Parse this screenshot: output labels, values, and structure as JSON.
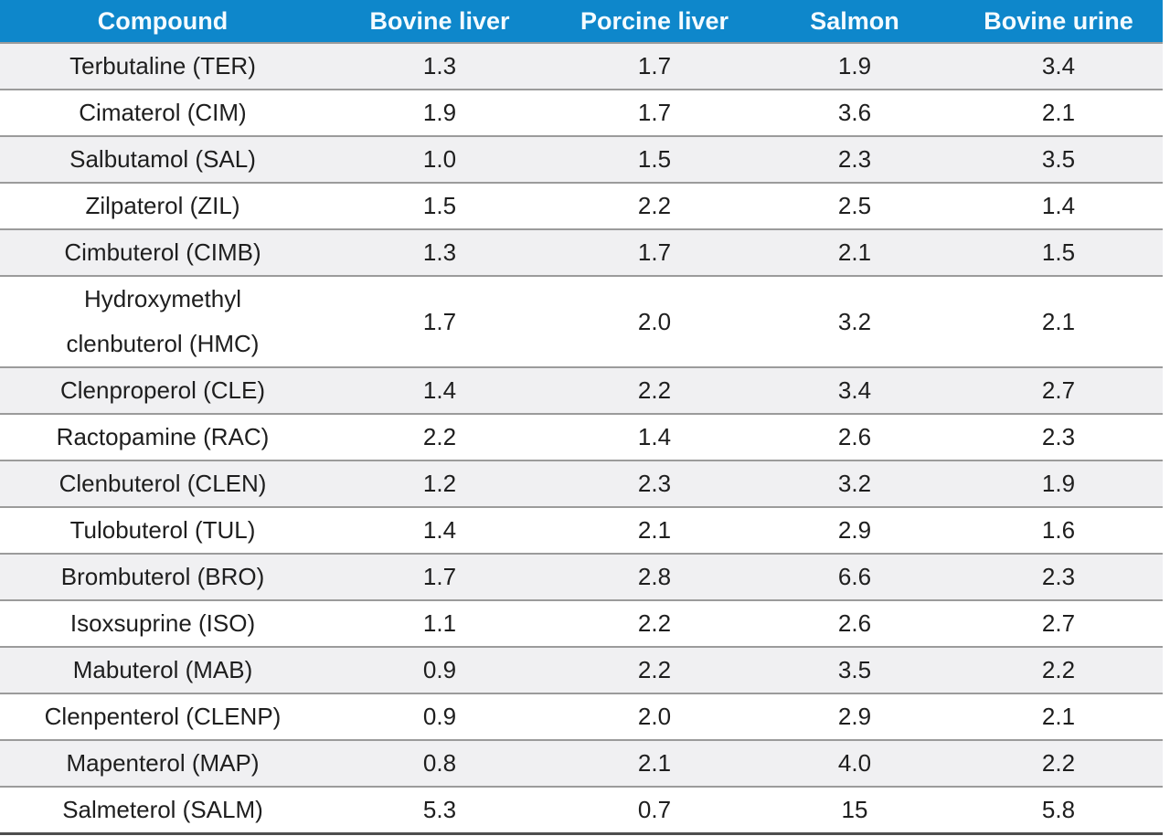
{
  "colors": {
    "header_bg": "#0E87CB",
    "header_text": "#F4FBFF",
    "body_text": "#1E1E1E",
    "stripe_bg": "#F0F0F2",
    "row_border": "#9B9B9B",
    "bottom_border": "#4D4D4D"
  },
  "table": {
    "columns": [
      "Compound",
      "Bovine liver",
      "Porcine liver",
      "Salmon",
      "Bovine urine"
    ],
    "rows": [
      {
        "compound": "Terbutaline (TER)",
        "values": [
          "1.3",
          "1.7",
          "1.9",
          "3.4"
        ]
      },
      {
        "compound": "Cimaterol (CIM)",
        "values": [
          "1.9",
          "1.7",
          "3.6",
          "2.1"
        ]
      },
      {
        "compound": "Salbutamol (SAL)",
        "values": [
          "1.0",
          "1.5",
          "2.3",
          "3.5"
        ]
      },
      {
        "compound": "Zilpaterol (ZIL)",
        "values": [
          "1.5",
          "2.2",
          "2.5",
          "1.4"
        ]
      },
      {
        "compound": "Cimbuterol (CIMB)",
        "values": [
          "1.3",
          "1.7",
          "2.1",
          "1.5"
        ]
      },
      {
        "compound": "Hydroxymethyl clenbuterol (HMC)",
        "values": [
          "1.7",
          "2.0",
          "3.2",
          "2.1"
        ]
      },
      {
        "compound": "Clenproperol (CLE)",
        "values": [
          "1.4",
          "2.2",
          "3.4",
          "2.7"
        ]
      },
      {
        "compound": "Ractopamine (RAC)",
        "values": [
          "2.2",
          "1.4",
          "2.6",
          "2.3"
        ]
      },
      {
        "compound": "Clenbuterol (CLEN)",
        "values": [
          "1.2",
          "2.3",
          "3.2",
          "1.9"
        ]
      },
      {
        "compound": "Tulobuterol (TUL)",
        "values": [
          "1.4",
          "2.1",
          "2.9",
          "1.6"
        ]
      },
      {
        "compound": "Brombuterol (BRO)",
        "values": [
          "1.7",
          "2.8",
          "6.6",
          "2.3"
        ]
      },
      {
        "compound": "Isoxsuprine (ISO)",
        "values": [
          "1.1",
          "2.2",
          "2.6",
          "2.7"
        ]
      },
      {
        "compound": "Mabuterol (MAB)",
        "values": [
          "0.9",
          "2.2",
          "3.5",
          "2.2"
        ]
      },
      {
        "compound": "Clenpenterol (CLENP)",
        "values": [
          "0.9",
          "2.0",
          "2.9",
          "2.1"
        ]
      },
      {
        "compound": "Mapenterol (MAP)",
        "values": [
          "0.8",
          "2.1",
          "4.0",
          "2.2"
        ]
      },
      {
        "compound": "Salmeterol (SALM)",
        "values": [
          "5.3",
          "0.7",
          "15",
          "5.8"
        ]
      }
    ]
  },
  "chart_data": {
    "type": "table",
    "columns": [
      "Compound",
      "Bovine liver",
      "Porcine liver",
      "Salmon",
      "Bovine urine"
    ],
    "rows": [
      [
        "Terbutaline (TER)",
        1.3,
        1.7,
        1.9,
        3.4
      ],
      [
        "Cimaterol (CIM)",
        1.9,
        1.7,
        3.6,
        2.1
      ],
      [
        "Salbutamol (SAL)",
        1.0,
        1.5,
        2.3,
        3.5
      ],
      [
        "Zilpaterol (ZIL)",
        1.5,
        2.2,
        2.5,
        1.4
      ],
      [
        "Cimbuterol (CIMB)",
        1.3,
        1.7,
        2.1,
        1.5
      ],
      [
        "Hydroxymethyl clenbuterol (HMC)",
        1.7,
        2.0,
        3.2,
        2.1
      ],
      [
        "Clenproperol (CLE)",
        1.4,
        2.2,
        3.4,
        2.7
      ],
      [
        "Ractopamine (RAC)",
        2.2,
        1.4,
        2.6,
        2.3
      ],
      [
        "Clenbuterol (CLEN)",
        1.2,
        2.3,
        3.2,
        1.9
      ],
      [
        "Tulobuterol (TUL)",
        1.4,
        2.1,
        2.9,
        1.6
      ],
      [
        "Brombuterol (BRO)",
        1.7,
        2.8,
        6.6,
        2.3
      ],
      [
        "Isoxsuprine (ISO)",
        1.1,
        2.2,
        2.6,
        2.7
      ],
      [
        "Mabuterol (MAB)",
        0.9,
        2.2,
        3.5,
        2.2
      ],
      [
        "Clenpenterol (CLENP)",
        0.9,
        2.0,
        2.9,
        2.1
      ],
      [
        "Mapenterol (MAP)",
        0.8,
        2.1,
        4.0,
        2.2
      ],
      [
        "Salmeterol (SALM)",
        5.3,
        0.7,
        15,
        5.8
      ]
    ],
    "layout_hints": {
      "header_row": true,
      "zebra_striping": "odd rows shaded starting with first data row",
      "alignment": "all cells centered",
      "grid": "horizontal row separators only, no vertical lines"
    }
  }
}
